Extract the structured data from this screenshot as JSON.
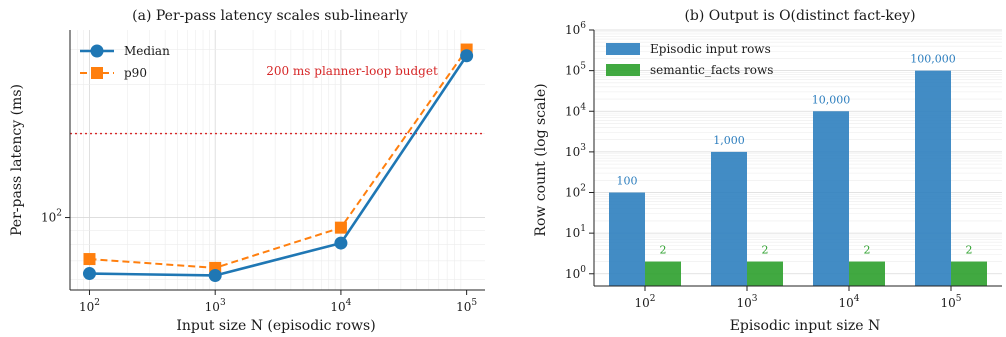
{
  "chart_data": [
    {
      "type": "line",
      "title": "(a) Per-pass latency scales sub-linearly",
      "xlabel": "Input size N (episodic rows)",
      "ylabel": "Per-pass latency (ms)",
      "xscale": "log",
      "yscale": "log",
      "xlim": [
        70,
        140000
      ],
      "ylim": [
        55,
        470
      ],
      "x": [
        100,
        1000,
        10000,
        100000
      ],
      "x_tick_labels": [
        "10^2",
        "10^3",
        "10^4",
        "10^5"
      ],
      "y_tick_labels": [
        "10^2"
      ],
      "series": [
        {
          "name": "Median",
          "values": [
            63,
            62,
            81,
            380
          ],
          "color": "#1f77b4",
          "marker": "circle",
          "line": "solid"
        },
        {
          "name": "p90",
          "values": [
            71,
            66,
            92,
            400
          ],
          "color": "#ff7f0e",
          "marker": "square",
          "line": "dashed"
        }
      ],
      "reference_line": {
        "value": 200,
        "label": "200 ms planner-loop budget",
        "color": "#d62728"
      },
      "legend": "top-left",
      "grid": true
    },
    {
      "type": "bar",
      "title": "(b) Output is O(distinct fact-key)",
      "xlabel": "Episodic input size N",
      "ylabel": "Row count (log scale)",
      "yscale": "log",
      "ylim": [
        0.5,
        1000000
      ],
      "categories": [
        "10^2",
        "10^3",
        "10^4",
        "10^5"
      ],
      "y_tick_labels": [
        "10^0",
        "10^1",
        "10^2",
        "10^3",
        "10^4",
        "10^5",
        "10^6"
      ],
      "series": [
        {
          "name": "Episodic input rows",
          "values": [
            100,
            1000,
            10000,
            100000
          ],
          "labels": [
            "100",
            "1,000",
            "10,000",
            "100,000"
          ],
          "color": "#2e7fbf"
        },
        {
          "name": "semantic_facts rows",
          "values": [
            2,
            2,
            2,
            2
          ],
          "labels": [
            "2",
            "2",
            "2",
            "2"
          ],
          "color": "#2ca02c"
        }
      ],
      "legend": "top-left",
      "grid": true
    }
  ]
}
